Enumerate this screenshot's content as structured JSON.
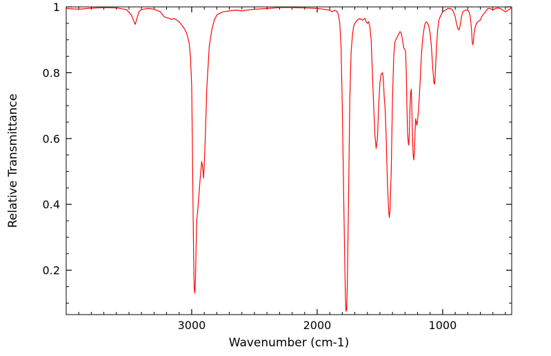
{
  "chart_data": {
    "type": "line",
    "xlabel": "Wavenumber (cm-1)",
    "ylabel": "Relative Transmittance",
    "xlim": [
      4000,
      450
    ],
    "ylim": [
      0.065,
      1.0
    ],
    "x_reversed": true,
    "grid": false,
    "x_ticks": [
      {
        "value": 3000,
        "label": "3000"
      },
      {
        "value": 2000,
        "label": "2000"
      },
      {
        "value": 1000,
        "label": "1000"
      }
    ],
    "y_ticks": [
      {
        "value": 1.0,
        "label": "1"
      },
      {
        "value": 0.8,
        "label": "0.8"
      },
      {
        "value": 0.6,
        "label": "0.6"
      },
      {
        "value": 0.4,
        "label": "0.4"
      },
      {
        "value": 0.2,
        "label": "0.2"
      }
    ],
    "x_minor_step": 100,
    "y_minor_step": 0.05,
    "line_color": "#ff0000",
    "series": [
      {
        "points": [
          [
            4000,
            0.995
          ],
          [
            3900,
            0.993
          ],
          [
            3800,
            0.996
          ],
          [
            3700,
            0.998
          ],
          [
            3600,
            0.997
          ],
          [
            3520,
            0.992
          ],
          [
            3480,
            0.975
          ],
          [
            3460,
            0.955
          ],
          [
            3450,
            0.947
          ],
          [
            3440,
            0.96
          ],
          [
            3420,
            0.985
          ],
          [
            3400,
            0.992
          ],
          [
            3350,
            0.995
          ],
          [
            3300,
            0.993
          ],
          [
            3250,
            0.985
          ],
          [
            3220,
            0.97
          ],
          [
            3180,
            0.965
          ],
          [
            3160,
            0.962
          ],
          [
            3140,
            0.965
          ],
          [
            3120,
            0.96
          ],
          [
            3100,
            0.955
          ],
          [
            3080,
            0.945
          ],
          [
            3060,
            0.935
          ],
          [
            3040,
            0.92
          ],
          [
            3020,
            0.89
          ],
          [
            3010,
            0.85
          ],
          [
            3000,
            0.76
          ],
          [
            2995,
            0.6
          ],
          [
            2990,
            0.42
          ],
          [
            2985,
            0.25
          ],
          [
            2980,
            0.145
          ],
          [
            2975,
            0.13
          ],
          [
            2970,
            0.17
          ],
          [
            2965,
            0.27
          ],
          [
            2960,
            0.35
          ],
          [
            2950,
            0.39
          ],
          [
            2940,
            0.44
          ],
          [
            2930,
            0.49
          ],
          [
            2920,
            0.53
          ],
          [
            2915,
            0.52
          ],
          [
            2910,
            0.5
          ],
          [
            2905,
            0.48
          ],
          [
            2900,
            0.52
          ],
          [
            2890,
            0.62
          ],
          [
            2880,
            0.75
          ],
          [
            2860,
            0.88
          ],
          [
            2840,
            0.93
          ],
          [
            2820,
            0.96
          ],
          [
            2800,
            0.975
          ],
          [
            2780,
            0.98
          ],
          [
            2750,
            0.985
          ],
          [
            2700,
            0.988
          ],
          [
            2650,
            0.99
          ],
          [
            2600,
            0.988
          ],
          [
            2500,
            0.993
          ],
          [
            2400,
            0.995
          ],
          [
            2300,
            0.998
          ],
          [
            2200,
            0.998
          ],
          [
            2100,
            0.997
          ],
          [
            2000,
            0.995
          ],
          [
            1950,
            0.993
          ],
          [
            1900,
            0.99
          ],
          [
            1880,
            0.985
          ],
          [
            1860,
            0.99
          ],
          [
            1840,
            0.985
          ],
          [
            1830,
            0.975
          ],
          [
            1820,
            0.95
          ],
          [
            1810,
            0.88
          ],
          [
            1800,
            0.7
          ],
          [
            1790,
            0.45
          ],
          [
            1780,
            0.22
          ],
          [
            1775,
            0.12
          ],
          [
            1770,
            0.075
          ],
          [
            1765,
            0.08
          ],
          [
            1760,
            0.15
          ],
          [
            1750,
            0.42
          ],
          [
            1740,
            0.72
          ],
          [
            1730,
            0.86
          ],
          [
            1720,
            0.91
          ],
          [
            1710,
            0.94
          ],
          [
            1700,
            0.95
          ],
          [
            1680,
            0.96
          ],
          [
            1660,
            0.965
          ],
          [
            1640,
            0.96
          ],
          [
            1620,
            0.965
          ],
          [
            1610,
            0.955
          ],
          [
            1600,
            0.95
          ],
          [
            1590,
            0.955
          ],
          [
            1580,
            0.94
          ],
          [
            1570,
            0.9
          ],
          [
            1560,
            0.8
          ],
          [
            1550,
            0.7
          ],
          [
            1540,
            0.61
          ],
          [
            1530,
            0.57
          ],
          [
            1520,
            0.6
          ],
          [
            1510,
            0.7
          ],
          [
            1500,
            0.77
          ],
          [
            1490,
            0.795
          ],
          [
            1480,
            0.8
          ],
          [
            1475,
            0.79
          ],
          [
            1470,
            0.76
          ],
          [
            1465,
            0.72
          ],
          [
            1460,
            0.7
          ],
          [
            1455,
            0.66
          ],
          [
            1450,
            0.6
          ],
          [
            1440,
            0.46
          ],
          [
            1430,
            0.38
          ],
          [
            1425,
            0.36
          ],
          [
            1420,
            0.38
          ],
          [
            1410,
            0.5
          ],
          [
            1400,
            0.72
          ],
          [
            1390,
            0.85
          ],
          [
            1380,
            0.895
          ],
          [
            1360,
            0.91
          ],
          [
            1340,
            0.925
          ],
          [
            1330,
            0.92
          ],
          [
            1320,
            0.9
          ],
          [
            1310,
            0.875
          ],
          [
            1300,
            0.87
          ],
          [
            1295,
            0.86
          ],
          [
            1290,
            0.8
          ],
          [
            1285,
            0.7
          ],
          [
            1280,
            0.62
          ],
          [
            1275,
            0.59
          ],
          [
            1270,
            0.58
          ],
          [
            1265,
            0.62
          ],
          [
            1260,
            0.7
          ],
          [
            1255,
            0.74
          ],
          [
            1250,
            0.75
          ],
          [
            1245,
            0.68
          ],
          [
            1240,
            0.6
          ],
          [
            1235,
            0.55
          ],
          [
            1230,
            0.535
          ],
          [
            1225,
            0.56
          ],
          [
            1220,
            0.62
          ],
          [
            1215,
            0.66
          ],
          [
            1210,
            0.65
          ],
          [
            1205,
            0.64
          ],
          [
            1200,
            0.655
          ],
          [
            1190,
            0.7
          ],
          [
            1180,
            0.77
          ],
          [
            1170,
            0.85
          ],
          [
            1160,
            0.9
          ],
          [
            1150,
            0.93
          ],
          [
            1140,
            0.95
          ],
          [
            1130,
            0.955
          ],
          [
            1120,
            0.95
          ],
          [
            1110,
            0.94
          ],
          [
            1100,
            0.92
          ],
          [
            1090,
            0.88
          ],
          [
            1080,
            0.82
          ],
          [
            1070,
            0.77
          ],
          [
            1065,
            0.765
          ],
          [
            1060,
            0.79
          ],
          [
            1050,
            0.87
          ],
          [
            1040,
            0.93
          ],
          [
            1030,
            0.96
          ],
          [
            1020,
            0.97
          ],
          [
            1000,
            0.985
          ],
          [
            980,
            0.99
          ],
          [
            960,
            0.995
          ],
          [
            940,
            0.995
          ],
          [
            920,
            0.99
          ],
          [
            900,
            0.97
          ],
          [
            890,
            0.95
          ],
          [
            880,
            0.935
          ],
          [
            870,
            0.93
          ],
          [
            860,
            0.945
          ],
          [
            850,
            0.97
          ],
          [
            840,
            0.985
          ],
          [
            820,
            0.99
          ],
          [
            800,
            0.99
          ],
          [
            790,
            0.985
          ],
          [
            780,
            0.97
          ],
          [
            770,
            0.93
          ],
          [
            765,
            0.895
          ],
          [
            760,
            0.885
          ],
          [
            755,
            0.895
          ],
          [
            750,
            0.92
          ],
          [
            740,
            0.94
          ],
          [
            730,
            0.95
          ],
          [
            720,
            0.955
          ],
          [
            700,
            0.96
          ],
          [
            690,
            0.97
          ],
          [
            680,
            0.975
          ],
          [
            670,
            0.98
          ],
          [
            660,
            0.985
          ],
          [
            650,
            0.99
          ],
          [
            640,
            0.995
          ],
          [
            620,
            0.995
          ],
          [
            600,
            0.99
          ],
          [
            580,
            0.995
          ],
          [
            560,
            0.997
          ],
          [
            540,
            0.995
          ],
          [
            520,
            0.99
          ],
          [
            500,
            0.985
          ],
          [
            480,
            0.99
          ],
          [
            460,
            0.995
          ],
          [
            450,
            1.0
          ]
        ]
      }
    ]
  }
}
